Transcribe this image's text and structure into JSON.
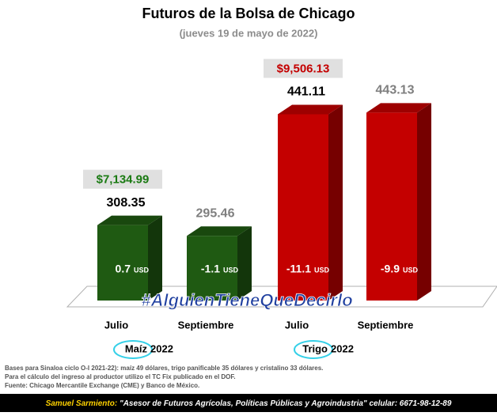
{
  "chart_data": {
    "type": "bar3d",
    "title": "Futuros de la Bolsa de Chicago",
    "subtitle": "(jueves 19 de mayo de 2022)",
    "categories": [
      "Julio",
      "Septiembre",
      "Julio",
      "Septiembre"
    ],
    "values": [
      308.35,
      295.46,
      441.11,
      443.13
    ],
    "colors": [
      "#1f5a12",
      "#1f5a12",
      "#c40000",
      "#c40000"
    ],
    "value_label_colors": [
      "#000000",
      "#7f7f7f",
      "#000000",
      "#7f7f7f"
    ],
    "ylim": [
      218,
      470
    ],
    "changes": {
      "values": [
        0.7,
        -1.1,
        -11.1,
        -9.9
      ],
      "unit": "USD"
    },
    "mxn_values": [
      7134.99,
      null,
      9506.13,
      null
    ],
    "mxn_labels": [
      "$7,134.99",
      null,
      "$9,506.13",
      null
    ],
    "mxn_label_colors": [
      "#1a7a12",
      null,
      "#c40000",
      null
    ],
    "groups": [
      {
        "name": "Maíz",
        "year": "2022"
      },
      {
        "name": "Trigo",
        "year": "2022"
      }
    ],
    "watermark": "#AlguienTieneQueDecirlo"
  },
  "notes": [
    "Bases para Sinaloa ciclo O-I 2021-22): maíz 49 dólares, trigo panificable 35 dólares y cristalino 33 dólares.",
    "Para el cálculo del ingreso al productor utilizo el TC Fix publicado en el DOF.",
    "Fuente: Chicago Mercantile Exchange (CME) y Banco de México."
  ],
  "footer": {
    "author": "Samuel Sarmiento:",
    "role": "\"Asesor de Futuros Agrícolas, Políticas Públicas y Agroindustria\"",
    "contact": "celular: 6671-98-12-89"
  }
}
